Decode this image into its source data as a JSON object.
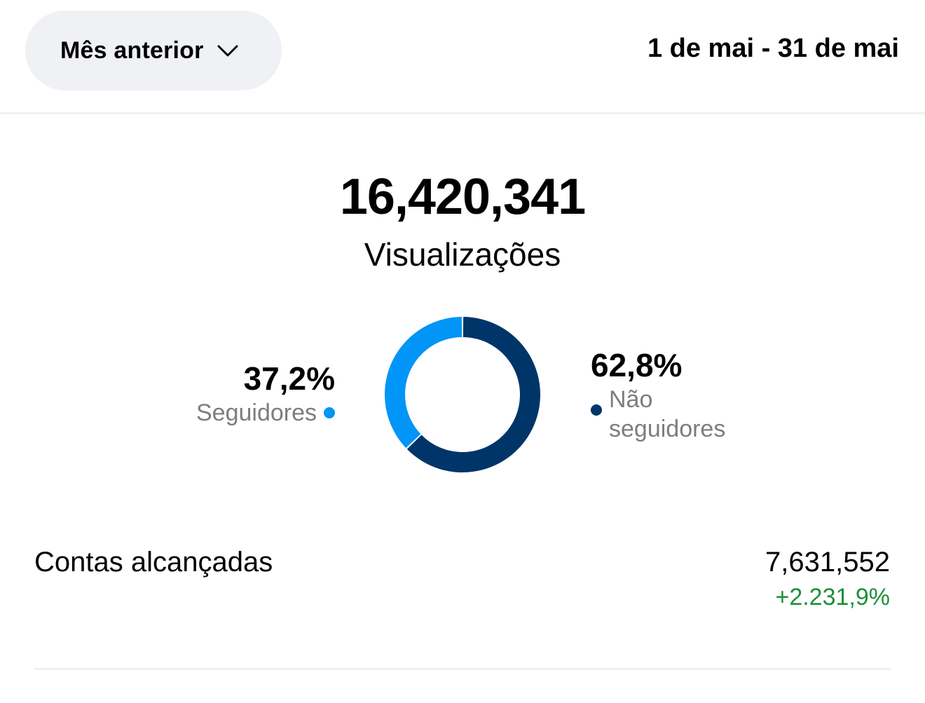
{
  "header": {
    "period_selector_label": "Mês anterior",
    "period_selector_icon": "chevron-down-icon",
    "date_range": "1 de mai - 31 de mai"
  },
  "metric": {
    "total_views": "16,420,341",
    "total_label": "Visualizações"
  },
  "chart_data": {
    "type": "pie",
    "style": "donut",
    "series": [
      {
        "name": "Seguidores",
        "value": 37.2,
        "label": "37,2%",
        "color": "#0095f6"
      },
      {
        "name": "Não seguidores",
        "value": 62.8,
        "label": "62,8%",
        "color": "#003569"
      }
    ]
  },
  "reach": {
    "label": "Contas alcançadas",
    "value": "7,631,552",
    "change": "+2.231,9%",
    "change_color": "#1f8f3a"
  }
}
